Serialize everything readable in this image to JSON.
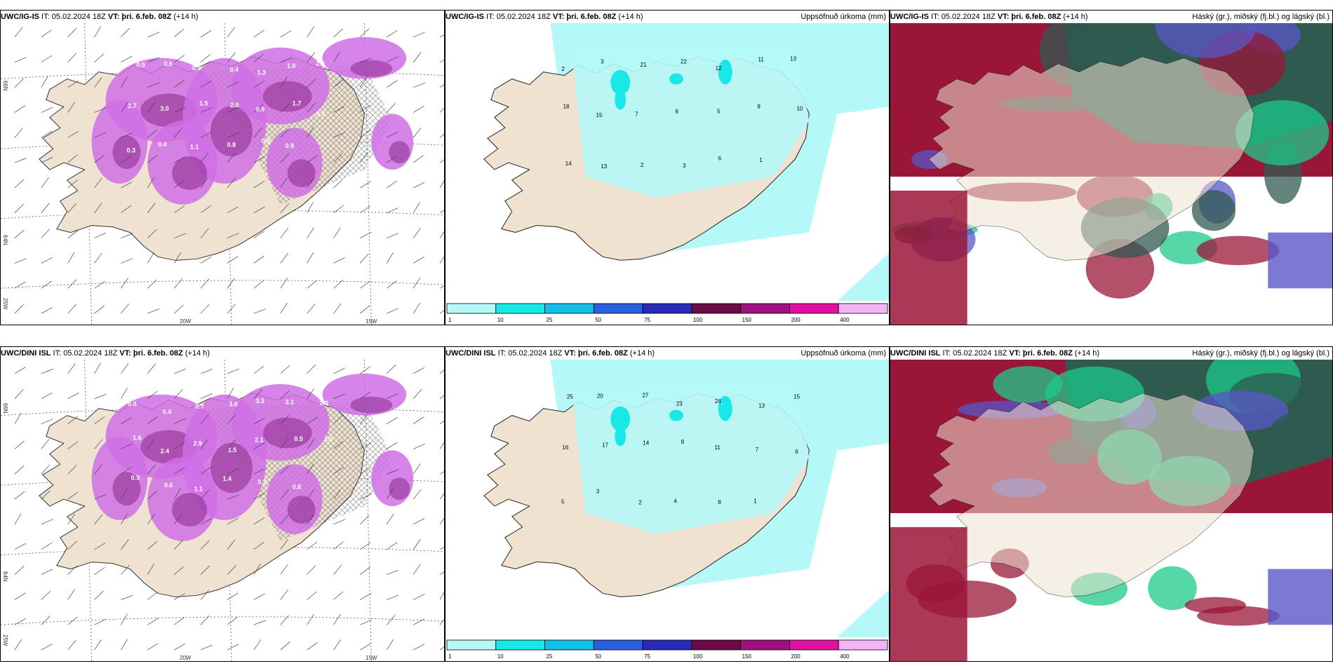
{
  "colors": {
    "land": "#efe2d0",
    "sea_light": "#b5f8f8",
    "precip_pink": "#d06ee6",
    "precip_purple": "#8a2a8a",
    "cloud_high": "#2f5a50",
    "cloud_mid": "#9a1638",
    "cloud_low": "#5a57c8",
    "green": "#1ec98a"
  },
  "panels": [
    {
      "id": "igis-precip-wind",
      "title_model": "UWC/IG-IS",
      "title_it": " IT: 05.02.2024 18Z ",
      "title_vt_label": "VT:",
      "title_vt_value": " þri. 6.feb. 08Z",
      "title_lead": " (+14 h)",
      "right_label": "",
      "lon_labels": [
        "20W",
        "15W"
      ],
      "lat_labels": [
        "66N",
        "64N",
        "25W"
      ],
      "values": [
        "0.5",
        "0.6",
        "0.3",
        "0.4",
        "1.3",
        "1.9",
        "2.5",
        "2.7",
        "3.0",
        "1.5",
        "2.0",
        "0.9",
        "1.7",
        "0.7",
        "0.3",
        "0.4",
        "1.1",
        "0.8",
        "0.5",
        "0.9"
      ]
    },
    {
      "id": "igis-accum",
      "title_model": "UWC/IG-IS",
      "title_it": " IT: 05.02.2024 18Z ",
      "title_vt_label": "VT:",
      "title_vt_value": " þri. 6.feb. 08Z",
      "title_lead": " (+14 h)",
      "right_label": "Uppsöfnuð úrkoma (mm)",
      "values": [
        "2",
        "3",
        "21",
        "22",
        "12",
        "11",
        "13",
        "18",
        "15",
        "7",
        "6",
        "5",
        "9",
        "10",
        "14",
        "13",
        "2",
        "3",
        "6",
        "1"
      ],
      "colorbar": {
        "labels": [
          "1",
          "10",
          "25",
          "50",
          "75",
          "100",
          "150",
          "200",
          "400"
        ]
      }
    },
    {
      "id": "igis-clouds",
      "title_model": "UWC/IG-IS",
      "title_it": " IT: 05.02.2024 18Z ",
      "title_vt_label": "VT:",
      "title_vt_value": " þri. 6.feb. 08Z",
      "title_lead": " (+14 h)",
      "right_label": "Háský (gr.), miðský (fj.bl.) og lágský (bl.)"
    },
    {
      "id": "dini-precip-wind",
      "title_model": "UWC/DINI ISL",
      "title_it": " IT: 05.02.2024 18Z ",
      "title_vt_label": "VT:",
      "title_vt_value": " þri. 6.feb. 08Z",
      "title_lead": " (+14 h)",
      "right_label": "",
      "lon_labels": [
        "20W",
        "15W"
      ],
      "lat_labels": [
        "66N",
        "64N",
        "25W"
      ],
      "values": [
        "0.5",
        "0.4",
        "0.7",
        "3.0",
        "3.3",
        "3.1",
        "2.0",
        "1.6",
        "2.4",
        "2.9",
        "1.5",
        "2.1",
        "0.5",
        "1.0",
        "0.3",
        "0.6",
        "1.1",
        "1.4",
        "0.9",
        "0.8"
      ]
    },
    {
      "id": "dini-accum",
      "title_model": "UWC/DINI ISL",
      "title_it": " IT: 05.02.2024 18Z ",
      "title_vt_label": "VT:",
      "title_vt_value": " þri. 6.feb. 08Z",
      "title_lead": " (+14 h)",
      "right_label": "Uppsöfnuð úrkoma (mm)",
      "values": [
        "25",
        "20",
        "27",
        "23",
        "24",
        "13",
        "15",
        "16",
        "17",
        "14",
        "9",
        "11",
        "7",
        "6",
        "5",
        "3",
        "2",
        "4",
        "8",
        "1"
      ],
      "colorbar": {
        "labels": [
          "1",
          "10",
          "25",
          "50",
          "75",
          "100",
          "150",
          "200",
          "400"
        ]
      }
    },
    {
      "id": "dini-clouds",
      "title_model": "UWC/DINI ISL",
      "title_it": " IT: 05.02.2024 18Z ",
      "title_vt_label": "VT:",
      "title_vt_value": " þri. 6.feb. 08Z",
      "title_lead": " (+14 h)",
      "right_label": "Háský (gr.), miðský (fj.bl.) og lágský (bl.)"
    }
  ]
}
